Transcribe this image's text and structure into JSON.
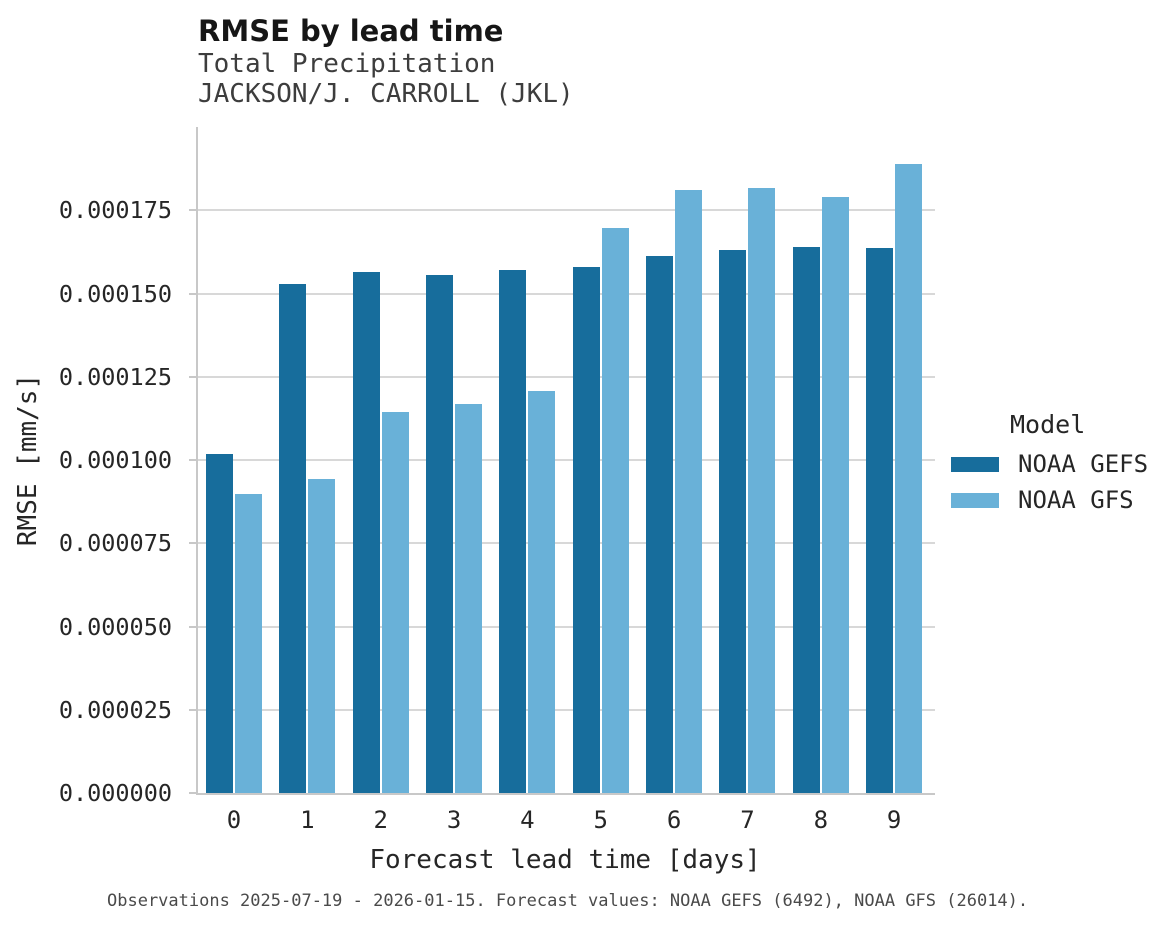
{
  "header": {
    "title": "RMSE by lead time",
    "subtitle_line1": "Total Precipitation",
    "subtitle_line2": "JACKSON/J. CARROLL (JKL)"
  },
  "chart_data": {
    "type": "bar",
    "title": "RMSE by lead time",
    "subtitle": [
      "Total Precipitation",
      "JACKSON/J. CARROLL (JKL)"
    ],
    "categories": [
      "0",
      "1",
      "2",
      "3",
      "4",
      "5",
      "6",
      "7",
      "8",
      "9"
    ],
    "series": [
      {
        "name": "NOAA GEFS",
        "color": "#176d9c",
        "values": [
          0.0001017,
          0.0001529,
          0.0001565,
          0.0001556,
          0.0001571,
          0.000158,
          0.0001612,
          0.0001631,
          0.0001641,
          0.0001638
        ]
      },
      {
        "name": "NOAA GFS",
        "color": "#69b1d8",
        "values": [
          8.98e-05,
          9.43e-05,
          0.0001144,
          0.0001168,
          0.0001207,
          0.0001698,
          0.0001812,
          0.0001816,
          0.0001789,
          0.0001889
        ]
      }
    ],
    "xlabel": "Forecast lead time [days]",
    "ylabel": "RMSE [mm/s]",
    "yticks": [
      0,
      2.5e-05,
      5e-05,
      7.5e-05,
      0.0001,
      0.000125,
      0.00015,
      0.000175
    ],
    "ytick_labels": [
      "0.000000",
      "0.000025",
      "0.000050",
      "0.000075",
      "0.000100",
      "0.000125",
      "0.000150",
      "0.000175"
    ],
    "ylim": [
      0,
      0.0002
    ],
    "grid": true,
    "legend_position": "right"
  },
  "legend": {
    "title": "Model",
    "items": [
      {
        "label": "NOAA GEFS",
        "color": "#176d9c"
      },
      {
        "label": "NOAA GFS",
        "color": "#69b1d8"
      }
    ]
  },
  "caption": "Observations 2025-07-19 - 2026-01-15. Forecast values: NOAA GEFS (6492), NOAA GFS (26014)."
}
